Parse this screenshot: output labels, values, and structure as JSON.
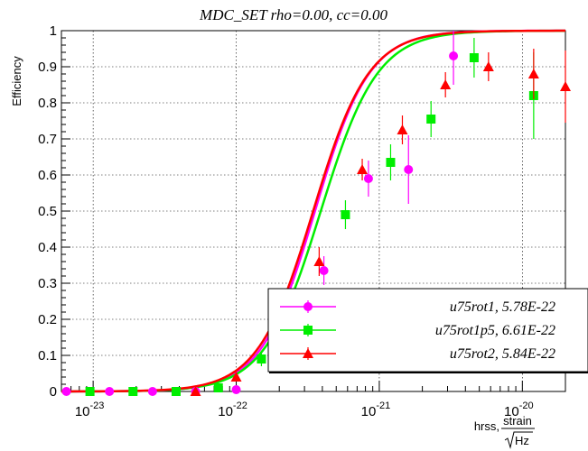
{
  "chart_data": {
    "type": "scatter",
    "title": "MDC_SET   rho=0.00, cc=0.00",
    "xlabel": "hrss,",
    "xlabel_unit_num": "strain",
    "xlabel_unit_den": "Hz",
    "ylabel": "Efficiency",
    "x_scale": "log",
    "xlim": [
      6e-24,
      2e-20
    ],
    "ylim": [
      0,
      1
    ],
    "grid": true,
    "legend_position": "bottom-right",
    "y_ticks": [
      {
        "value": 0,
        "label": "0"
      },
      {
        "value": 0.1,
        "label": "0.1"
      },
      {
        "value": 0.2,
        "label": "0.2"
      },
      {
        "value": 0.3,
        "label": "0.3"
      },
      {
        "value": 0.4,
        "label": "0.4"
      },
      {
        "value": 0.5,
        "label": "0.5"
      },
      {
        "value": 0.6,
        "label": "0.6"
      },
      {
        "value": 0.7,
        "label": "0.7"
      },
      {
        "value": 0.8,
        "label": "0.8"
      },
      {
        "value": 0.9,
        "label": "0.9"
      },
      {
        "value": 1,
        "label": "1"
      }
    ],
    "x_ticks": [
      {
        "value": 1e-23,
        "base": "10",
        "exp": "-23"
      },
      {
        "value": 1e-22,
        "base": "10",
        "exp": "-22"
      },
      {
        "value": 1e-21,
        "base": "10",
        "exp": "-21"
      },
      {
        "value": 1e-20,
        "base": "10",
        "exp": "-20"
      }
    ],
    "series": [
      {
        "name": "u75rot1, 5.78E-22",
        "color": "#ff00ff",
        "marker": "circle",
        "fit": {
          "x50": 3.55e-22,
          "slope": 2.3
        },
        "points": [
          {
            "x": 6.5e-24,
            "y": 0.0,
            "err": 0.005
          },
          {
            "x": 1.3e-23,
            "y": 0.0,
            "err": 0.005
          },
          {
            "x": 2.6e-23,
            "y": 0.0,
            "err": 0.005
          },
          {
            "x": 5.2e-23,
            "y": 0.0,
            "err": 0.005
          },
          {
            "x": 1e-22,
            "y": 0.005,
            "err": 0.01
          },
          {
            "x": 2.1e-22,
            "y": 0.2,
            "err": 0.03
          },
          {
            "x": 4.1e-22,
            "y": 0.335,
            "err": 0.04
          },
          {
            "x": 8.4e-22,
            "y": 0.59,
            "err": 0.05
          },
          {
            "x": 1.6e-21,
            "y": 0.615,
            "err": 0.095
          },
          {
            "x": 3.3e-21,
            "y": 0.93,
            "err": 0.08
          }
        ]
      },
      {
        "name": "u75rot1p5, 6.61E-22",
        "color": "#00ee00",
        "marker": "square",
        "fit": {
          "x50": 3.9e-22,
          "slope": 2.2
        },
        "points": [
          {
            "x": 9.5e-24,
            "y": 0.0,
            "err": 0.005
          },
          {
            "x": 1.9e-23,
            "y": 0.0,
            "err": 0.005
          },
          {
            "x": 3.8e-23,
            "y": 0.0,
            "err": 0.005
          },
          {
            "x": 7.5e-23,
            "y": 0.01,
            "err": 0.01
          },
          {
            "x": 1.5e-22,
            "y": 0.09,
            "err": 0.02
          },
          {
            "x": 2.9e-22,
            "y": 0.25,
            "err": 0.03
          },
          {
            "x": 5.8e-22,
            "y": 0.49,
            "err": 0.04
          },
          {
            "x": 1.2e-21,
            "y": 0.635,
            "err": 0.05
          },
          {
            "x": 2.3e-21,
            "y": 0.755,
            "err": 0.05
          },
          {
            "x": 4.6e-21,
            "y": 0.925,
            "err": 0.055
          },
          {
            "x": 1.2e-20,
            "y": 0.82,
            "err": 0.12
          }
        ]
      },
      {
        "name": "u75rot2, 5.84E-22",
        "color": "#ff0000",
        "marker": "triangle",
        "fit": {
          "x50": 3.45e-22,
          "slope": 2.25
        },
        "points": [
          {
            "x": 5.2e-23,
            "y": 0.0,
            "err": 0.005
          },
          {
            "x": 1e-22,
            "y": 0.04,
            "err": 0.01
          },
          {
            "x": 2e-22,
            "y": 0.18,
            "err": 0.03
          },
          {
            "x": 3.8e-22,
            "y": 0.36,
            "err": 0.04
          },
          {
            "x": 7.6e-22,
            "y": 0.615,
            "err": 0.03
          },
          {
            "x": 1.45e-21,
            "y": 0.725,
            "err": 0.04
          },
          {
            "x": 2.9e-21,
            "y": 0.85,
            "err": 0.035
          },
          {
            "x": 5.8e-21,
            "y": 0.9,
            "err": 0.04
          },
          {
            "x": 1.2e-20,
            "y": 0.88,
            "err": 0.07
          },
          {
            "x": 2e-20,
            "y": 0.845,
            "err": 0.1
          }
        ]
      }
    ]
  }
}
